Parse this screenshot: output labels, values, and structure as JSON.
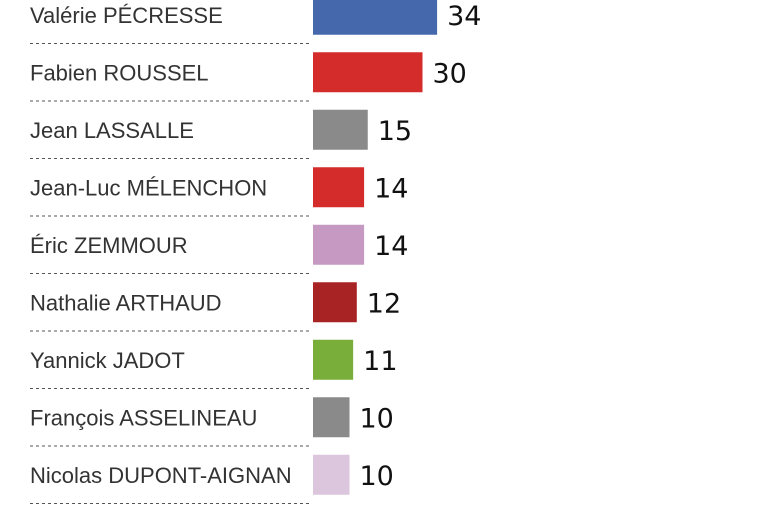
{
  "chart_data": {
    "type": "bar",
    "orientation": "horizontal",
    "categories": [
      "Valérie PÉCRESSE",
      "Fabien ROUSSEL",
      "Jean LASSALLE",
      "Jean-Luc MÉLENCHON",
      "Éric ZEMMOUR",
      "Nathalie ARTHAUD",
      "Yannick JADOT",
      "François ASSELINEAU",
      "Nicolas DUPONT-AIGNAN"
    ],
    "values": [
      34,
      30,
      15,
      14,
      14,
      12,
      11,
      10,
      10
    ],
    "colors": [
      "#4568ad",
      "#d42b2b",
      "#8a8a8a",
      "#d42b2b",
      "#c599c2",
      "#a82424",
      "#7aae3a",
      "#8a8a8a",
      "#dcc6dd"
    ],
    "title": "",
    "xlabel": "",
    "ylabel": "",
    "data_labels": true,
    "grid": false,
    "legend": "none"
  }
}
